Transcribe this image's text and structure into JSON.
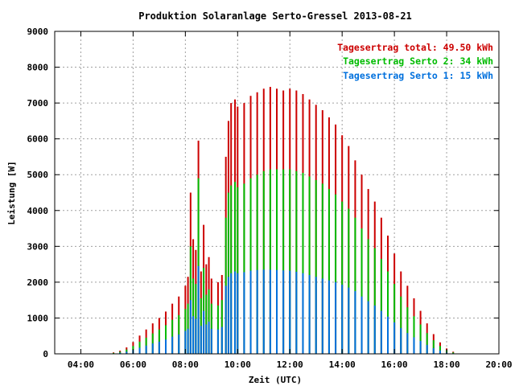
{
  "chart_data": {
    "type": "bar",
    "title": "Produktion Solaranlage Serto-Gressel 2013-08-21",
    "xlabel": "Zeit (UTC)",
    "ylabel": "Leistung [W]",
    "xlim_hours": [
      3,
      20
    ],
    "ylim": [
      0,
      9000
    ],
    "x_ticks": [
      {
        "h": 4,
        "label": "04:00"
      },
      {
        "h": 6,
        "label": "06:00"
      },
      {
        "h": 8,
        "label": "08:00"
      },
      {
        "h": 10,
        "label": "10:00"
      },
      {
        "h": 12,
        "label": "12:00"
      },
      {
        "h": 14,
        "label": "14:00"
      },
      {
        "h": 16,
        "label": "16:00"
      },
      {
        "h": 18,
        "label": "18:00"
      },
      {
        "h": 20,
        "label": "20:00"
      }
    ],
    "y_ticks": [
      {
        "v": 0,
        "label": "0"
      },
      {
        "v": 1000,
        "label": "1000"
      },
      {
        "v": 2000,
        "label": "2000"
      },
      {
        "v": 3000,
        "label": "3000"
      },
      {
        "v": 4000,
        "label": "4000"
      },
      {
        "v": 5000,
        "label": "5000"
      },
      {
        "v": 6000,
        "label": "6000"
      },
      {
        "v": 7000,
        "label": "7000"
      },
      {
        "v": 8000,
        "label": "8000"
      },
      {
        "v": 9000,
        "label": "9000"
      }
    ],
    "grid": true,
    "legend_position": "top-right",
    "legend": [
      {
        "label": "Tagesertrag total: 49.50 kWh",
        "color": "#cc0000"
      },
      {
        "label": "Tagesertrag Serto 2: 34 kWh",
        "color": "#00bb00"
      },
      {
        "label": "Tagesertrag Serto 1: 15 kWh",
        "color": "#0070dd"
      }
    ],
    "series": [
      {
        "color": "#cc0000",
        "points": [
          [
            5.0,
            10
          ],
          [
            5.25,
            40
          ],
          [
            5.5,
            90
          ],
          [
            5.75,
            180
          ],
          [
            6.0,
            330
          ],
          [
            6.25,
            510
          ],
          [
            6.5,
            680
          ],
          [
            6.75,
            850
          ],
          [
            7.0,
            1000
          ],
          [
            7.25,
            1180
          ],
          [
            7.5,
            1400
          ],
          [
            7.75,
            1600
          ],
          [
            8.0,
            1900
          ],
          [
            8.1,
            2150
          ],
          [
            8.2,
            4500
          ],
          [
            8.3,
            3200
          ],
          [
            8.4,
            2900
          ],
          [
            8.5,
            5950
          ],
          [
            8.6,
            2300
          ],
          [
            8.7,
            3600
          ],
          [
            8.8,
            2500
          ],
          [
            8.9,
            2700
          ],
          [
            9.0,
            2100
          ],
          [
            9.25,
            2000
          ],
          [
            9.4,
            2200
          ],
          [
            9.55,
            5500
          ],
          [
            9.65,
            6500
          ],
          [
            9.75,
            7000
          ],
          [
            9.9,
            7100
          ],
          [
            10.0,
            6900
          ],
          [
            10.25,
            7000
          ],
          [
            10.5,
            7200
          ],
          [
            10.75,
            7300
          ],
          [
            11.0,
            7400
          ],
          [
            11.25,
            7450
          ],
          [
            11.5,
            7400
          ],
          [
            11.75,
            7350
          ],
          [
            12.0,
            7400
          ],
          [
            12.25,
            7350
          ],
          [
            12.5,
            7250
          ],
          [
            12.75,
            7100
          ],
          [
            13.0,
            6950
          ],
          [
            13.25,
            6800
          ],
          [
            13.5,
            6600
          ],
          [
            13.75,
            6400
          ],
          [
            14.0,
            6100
          ],
          [
            14.25,
            5800
          ],
          [
            14.5,
            5400
          ],
          [
            14.75,
            5000
          ],
          [
            15.0,
            4600
          ],
          [
            15.25,
            4250
          ],
          [
            15.5,
            3800
          ],
          [
            15.75,
            3300
          ],
          [
            16.0,
            2800
          ],
          [
            16.25,
            2300
          ],
          [
            16.5,
            1900
          ],
          [
            16.75,
            1550
          ],
          [
            17.0,
            1200
          ],
          [
            17.25,
            850
          ],
          [
            17.5,
            550
          ],
          [
            17.75,
            320
          ],
          [
            18.0,
            150
          ],
          [
            18.25,
            60
          ],
          [
            18.5,
            10
          ]
        ]
      },
      {
        "color": "#00bb00",
        "points": [
          [
            5.0,
            5
          ],
          [
            5.25,
            25
          ],
          [
            5.5,
            60
          ],
          [
            5.75,
            120
          ],
          [
            6.0,
            220
          ],
          [
            6.25,
            340
          ],
          [
            6.5,
            450
          ],
          [
            6.75,
            570
          ],
          [
            7.0,
            680
          ],
          [
            7.25,
            800
          ],
          [
            7.5,
            950
          ],
          [
            7.75,
            1080
          ],
          [
            8.0,
            1250
          ],
          [
            8.1,
            1400
          ],
          [
            8.2,
            3000
          ],
          [
            8.3,
            2100
          ],
          [
            8.4,
            1950
          ],
          [
            8.5,
            4900
          ],
          [
            8.6,
            1550
          ],
          [
            8.7,
            2400
          ],
          [
            8.8,
            1650
          ],
          [
            8.9,
            1800
          ],
          [
            9.0,
            1400
          ],
          [
            9.25,
            1350
          ],
          [
            9.4,
            1500
          ],
          [
            9.55,
            3800
          ],
          [
            9.65,
            4500
          ],
          [
            9.75,
            4700
          ],
          [
            9.9,
            4800
          ],
          [
            10.0,
            4650
          ],
          [
            10.25,
            4750
          ],
          [
            10.5,
            4900
          ],
          [
            10.75,
            5000
          ],
          [
            11.0,
            5100
          ],
          [
            11.25,
            5150
          ],
          [
            11.5,
            5150
          ],
          [
            11.75,
            5150
          ],
          [
            12.0,
            5150
          ],
          [
            12.25,
            5100
          ],
          [
            12.5,
            5050
          ],
          [
            12.75,
            4950
          ],
          [
            13.0,
            4850
          ],
          [
            13.25,
            4750
          ],
          [
            13.5,
            4600
          ],
          [
            13.75,
            4450
          ],
          [
            14.0,
            4250
          ],
          [
            14.25,
            4050
          ],
          [
            14.5,
            3800
          ],
          [
            14.75,
            3500
          ],
          [
            15.0,
            3200
          ],
          [
            15.25,
            2950
          ],
          [
            15.5,
            2650
          ],
          [
            15.75,
            2300
          ],
          [
            16.0,
            1950
          ],
          [
            16.25,
            1600
          ],
          [
            16.5,
            1300
          ],
          [
            16.75,
            1050
          ],
          [
            17.0,
            820
          ],
          [
            17.25,
            580
          ],
          [
            17.5,
            380
          ],
          [
            17.75,
            220
          ],
          [
            18.0,
            100
          ],
          [
            18.25,
            40
          ],
          [
            18.5,
            5
          ]
        ]
      },
      {
        "color": "#0070dd",
        "points": [
          [
            5.0,
            3
          ],
          [
            5.25,
            12
          ],
          [
            5.5,
            30
          ],
          [
            5.75,
            60
          ],
          [
            6.0,
            110
          ],
          [
            6.25,
            170
          ],
          [
            6.5,
            230
          ],
          [
            6.75,
            290
          ],
          [
            7.0,
            340
          ],
          [
            7.25,
            400
          ],
          [
            7.5,
            480
          ],
          [
            7.75,
            540
          ],
          [
            8.0,
            640
          ],
          [
            8.1,
            700
          ],
          [
            8.2,
            1500
          ],
          [
            8.3,
            1050
          ],
          [
            8.4,
            980
          ],
          [
            8.5,
            2450
          ],
          [
            8.6,
            780
          ],
          [
            8.7,
            1200
          ],
          [
            8.8,
            820
          ],
          [
            8.9,
            900
          ],
          [
            9.0,
            700
          ],
          [
            9.25,
            680
          ],
          [
            9.4,
            750
          ],
          [
            9.55,
            1900
          ],
          [
            9.65,
            2150
          ],
          [
            9.75,
            2250
          ],
          [
            9.9,
            2300
          ],
          [
            10.0,
            2250
          ],
          [
            10.25,
            2280
          ],
          [
            10.5,
            2320
          ],
          [
            10.75,
            2340
          ],
          [
            11.0,
            2350
          ],
          [
            11.25,
            2350
          ],
          [
            11.5,
            2340
          ],
          [
            11.75,
            2330
          ],
          [
            12.0,
            2320
          ],
          [
            12.25,
            2290
          ],
          [
            12.5,
            2250
          ],
          [
            12.75,
            2200
          ],
          [
            13.0,
            2150
          ],
          [
            13.25,
            2100
          ],
          [
            13.5,
            2050
          ],
          [
            13.75,
            2000
          ],
          [
            14.0,
            1930
          ],
          [
            14.25,
            1850
          ],
          [
            14.5,
            1750
          ],
          [
            14.75,
            1600
          ],
          [
            15.0,
            1470
          ],
          [
            15.25,
            1350
          ],
          [
            15.5,
            1200
          ],
          [
            15.75,
            1040
          ],
          [
            16.0,
            880
          ],
          [
            16.25,
            720
          ],
          [
            16.5,
            580
          ],
          [
            16.75,
            460
          ],
          [
            17.0,
            360
          ],
          [
            17.25,
            250
          ],
          [
            17.5,
            160
          ],
          [
            17.75,
            95
          ],
          [
            18.0,
            40
          ],
          [
            18.25,
            15
          ],
          [
            18.5,
            2
          ]
        ]
      }
    ]
  }
}
